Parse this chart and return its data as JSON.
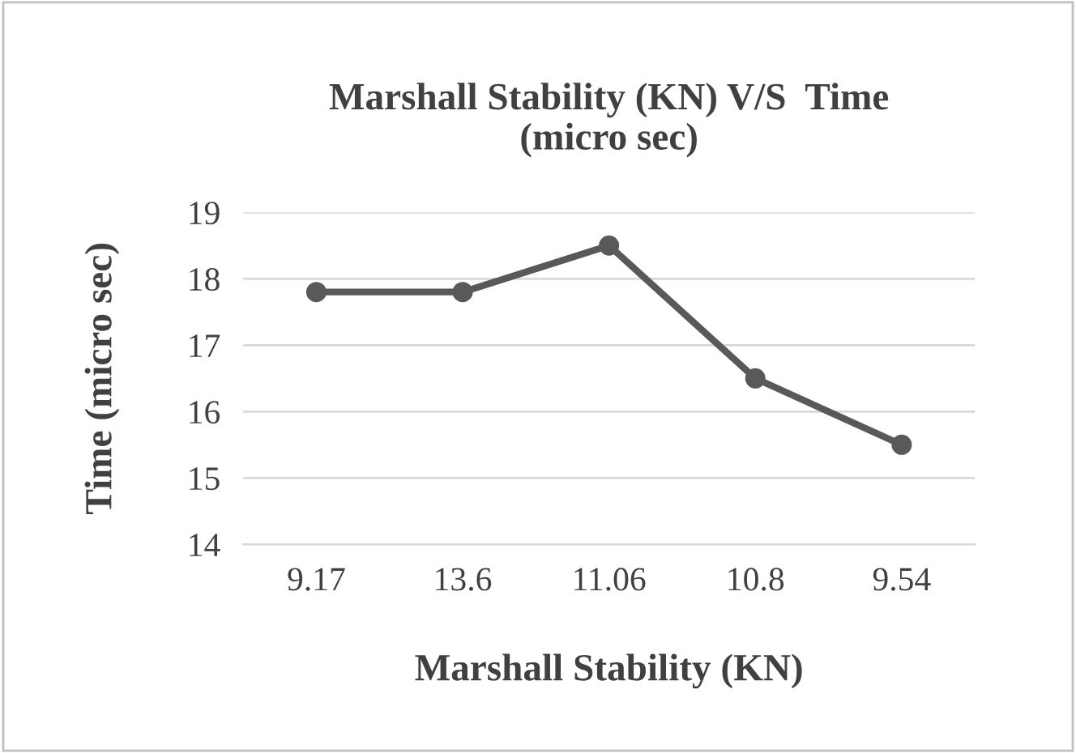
{
  "chart_data": {
    "type": "line",
    "title": "Marshall Stability (KN) V/S  Time\n(micro sec)",
    "xlabel": "Marshall Stability (KN)",
    "ylabel": "Time (micro sec)",
    "categories": [
      "9.17",
      "13.6",
      "11.06",
      "10.8",
      "9.54"
    ],
    "series": [
      {
        "color": "#595959",
        "values": [
          17.8,
          17.8,
          18.5,
          16.5,
          15.5
        ]
      }
    ],
    "ylim": [
      14,
      19
    ],
    "yticks": [
      14,
      15,
      16,
      17,
      18,
      19
    ],
    "grid": "y",
    "marker": "circle",
    "line_style": "solid",
    "legend": false
  }
}
